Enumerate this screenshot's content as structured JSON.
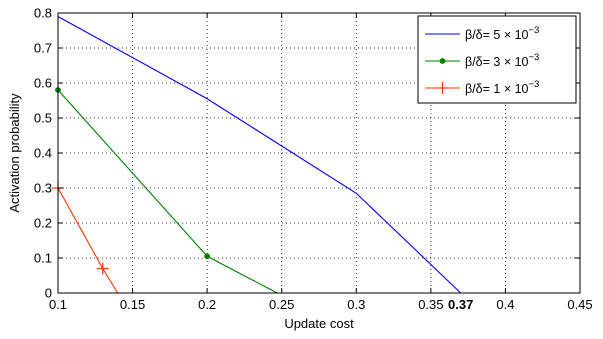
{
  "chart_data": {
    "type": "line",
    "xlabel": "Update cost",
    "ylabel": "Activation probability",
    "xlim": [
      0.1,
      0.45
    ],
    "ylim": [
      0,
      0.8
    ],
    "x_ticks": [
      0.1,
      0.15,
      0.2,
      0.25,
      0.3,
      0.35,
      0.4,
      0.45
    ],
    "x_tick_labels": [
      "0.1",
      "0.15",
      "0.2",
      "0.25",
      "0.3",
      "0.35",
      "0.4",
      "0.45"
    ],
    "x_extra_tick": {
      "value": 0.37,
      "label": "0.37",
      "bold": true
    },
    "y_ticks": [
      0,
      0.1,
      0.2,
      0.3,
      0.4,
      0.5,
      0.6,
      0.7,
      0.8
    ],
    "y_tick_labels": [
      "0",
      "0.1",
      "0.2",
      "0.3",
      "0.4",
      "0.5",
      "0.6",
      "0.7",
      "0.8"
    ],
    "grid": true,
    "legend_position": "top-right",
    "series": [
      {
        "name": "β/δ= 5 × 10",
        "exponent": "−3",
        "color": "#0000ff",
        "marker": "none",
        "x": [
          0.1,
          0.2,
          0.3,
          0.37
        ],
        "y": [
          0.79,
          0.555,
          0.285,
          0.0
        ],
        "marker_x": [],
        "marker_y": []
      },
      {
        "name": "β/δ= 3 × 10",
        "exponent": "−3",
        "color": "#007f00",
        "marker": "dot",
        "x": [
          0.1,
          0.2,
          0.247
        ],
        "y": [
          0.58,
          0.105,
          0.0
        ],
        "marker_x": [
          0.1,
          0.2
        ],
        "marker_y": [
          0.58,
          0.105
        ]
      },
      {
        "name": "β/δ= 1 × 10",
        "exponent": "−3",
        "color": "#ff3300",
        "marker": "plus",
        "x": [
          0.1,
          0.13,
          0.14
        ],
        "y": [
          0.3,
          0.07,
          0.0
        ],
        "marker_x": [
          0.1,
          0.13
        ],
        "marker_y": [
          0.3,
          0.07
        ]
      }
    ]
  }
}
